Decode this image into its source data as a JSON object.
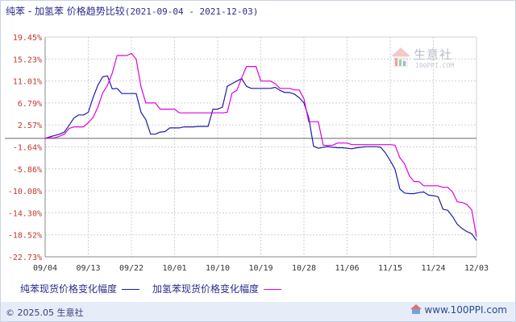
{
  "header": {
    "title": "纯苯 - 加氢苯 价格趋势比较",
    "range": "(2021-09-04 - 2021-12-03)"
  },
  "watermark": {
    "brand": "生意社",
    "url": "100PPI.COM"
  },
  "footer": {
    "copyright": "© 2025.05 生意社",
    "site": "www.100PPI.com"
  },
  "colors": {
    "series1": "#1c1ca8",
    "series2": "#e000e0",
    "axis": "#888888",
    "grid": "#d0d0d0",
    "label": "#c0392b",
    "xlabel": "#333333",
    "zero": "#666666"
  },
  "chart_data": {
    "type": "line",
    "title": "纯苯 - 加氢苯 价格趋势比较",
    "xlabel": "",
    "ylabel": "",
    "y_ticks": [
      "19.45%",
      "15.23%",
      "11.01%",
      "6.79%",
      "2.57%",
      "-1.64%",
      "-5.86%",
      "-10.08%",
      "-14.30%",
      "-18.52%",
      "-22.73%"
    ],
    "ylim": [
      -22.73,
      19.45
    ],
    "x_ticks": [
      "09/04",
      "09/13",
      "09/22",
      "10/01",
      "10/10",
      "10/19",
      "10/28",
      "11/06",
      "11/15",
      "11/24",
      "12/03"
    ],
    "x_range_days": [
      0,
      90
    ],
    "grid": true,
    "legend_position": "bottom",
    "series": [
      {
        "name": "纯苯现货价格变化幅度",
        "points": [
          [
            0,
            0
          ],
          [
            1,
            0.3
          ],
          [
            3,
            0.8
          ],
          [
            4,
            1.2
          ],
          [
            5,
            2.5
          ],
          [
            6,
            3.9
          ],
          [
            7,
            4.5
          ],
          [
            8,
            4.5
          ],
          [
            9,
            5.0
          ],
          [
            10,
            7.8
          ],
          [
            11,
            10.2
          ],
          [
            12,
            11.8
          ],
          [
            13,
            12.0
          ],
          [
            14,
            9.5
          ],
          [
            15,
            9.6
          ],
          [
            16,
            8.6
          ],
          [
            17,
            8.6
          ],
          [
            18,
            8.6
          ],
          [
            19,
            8.6
          ],
          [
            20,
            5.0
          ],
          [
            21,
            3.6
          ],
          [
            22,
            0.8
          ],
          [
            23,
            0.8
          ],
          [
            24,
            1.2
          ],
          [
            25,
            1.3
          ],
          [
            26,
            2.0
          ],
          [
            27,
            2.0
          ],
          [
            28,
            2.0
          ],
          [
            29,
            2.2
          ],
          [
            30,
            2.2
          ],
          [
            31,
            2.2
          ],
          [
            32,
            2.3
          ],
          [
            33,
            2.3
          ],
          [
            34,
            2.3
          ],
          [
            35,
            5.6
          ],
          [
            36,
            5.6
          ],
          [
            37,
            6.0
          ],
          [
            38,
            10.0
          ],
          [
            39,
            10.5
          ],
          [
            40,
            11.0
          ],
          [
            41,
            11.5
          ],
          [
            42,
            10.0
          ],
          [
            43,
            9.6
          ],
          [
            44,
            9.6
          ],
          [
            45,
            9.6
          ],
          [
            46,
            9.6
          ],
          [
            47,
            9.6
          ],
          [
            48,
            9.8
          ],
          [
            49,
            9.2
          ],
          [
            50,
            8.8
          ],
          [
            51,
            8.8
          ],
          [
            52,
            8.5
          ],
          [
            53,
            7.8
          ],
          [
            54,
            6.8
          ],
          [
            55,
            4.0
          ],
          [
            56,
            -1.5
          ],
          [
            57,
            -1.9
          ],
          [
            58,
            -1.7
          ],
          [
            59,
            -1.6
          ],
          [
            60,
            -1.7
          ],
          [
            61,
            -1.8
          ],
          [
            62,
            -1.8
          ],
          [
            63,
            -1.9
          ],
          [
            64,
            -2.0
          ],
          [
            65,
            -1.8
          ],
          [
            66,
            -1.7
          ],
          [
            67,
            -1.6
          ],
          [
            68,
            -1.6
          ],
          [
            69,
            -1.6
          ],
          [
            70,
            -1.7
          ],
          [
            71,
            -2.8
          ],
          [
            72,
            -4.3
          ],
          [
            73,
            -5.9
          ],
          [
            74,
            -9.7
          ],
          [
            75,
            -10.5
          ],
          [
            76,
            -10.6
          ],
          [
            77,
            -10.6
          ],
          [
            78,
            -10.4
          ],
          [
            79,
            -10.3
          ],
          [
            80,
            -10.9
          ],
          [
            81,
            -11.0
          ],
          [
            82,
            -11.2
          ],
          [
            83,
            -13.6
          ],
          [
            84,
            -13.8
          ],
          [
            85,
            -15.0
          ],
          [
            86,
            -16.5
          ],
          [
            87,
            -17.3
          ],
          [
            88,
            -17.9
          ],
          [
            89,
            -18.3
          ],
          [
            90,
            -19.6
          ]
        ]
      },
      {
        "name": "加氢苯现货价格变化幅度",
        "points": [
          [
            0,
            0
          ],
          [
            1,
            0.1
          ],
          [
            2,
            0.1
          ],
          [
            3,
            0.4
          ],
          [
            4,
            0.8
          ],
          [
            5,
            1.9
          ],
          [
            6,
            2.2
          ],
          [
            7,
            2.2
          ],
          [
            8,
            2.2
          ],
          [
            9,
            3.0
          ],
          [
            10,
            4.0
          ],
          [
            11,
            6.0
          ],
          [
            12,
            8.7
          ],
          [
            13,
            10.2
          ],
          [
            14,
            12.5
          ],
          [
            15,
            15.9
          ],
          [
            16,
            15.9
          ],
          [
            17,
            15.9
          ],
          [
            18,
            16.3
          ],
          [
            19,
            15.2
          ],
          [
            20,
            9.9
          ],
          [
            21,
            6.8
          ],
          [
            22,
            6.8
          ],
          [
            23,
            6.8
          ],
          [
            24,
            5.6
          ],
          [
            25,
            5.6
          ],
          [
            26,
            5.6
          ],
          [
            27,
            5.6
          ],
          [
            28,
            4.9
          ],
          [
            29,
            4.9
          ],
          [
            30,
            4.9
          ],
          [
            31,
            4.9
          ],
          [
            32,
            4.9
          ],
          [
            33,
            4.9
          ],
          [
            34,
            4.9
          ],
          [
            35,
            4.9
          ],
          [
            36,
            4.9
          ],
          [
            37,
            4.9
          ],
          [
            38,
            5.0
          ],
          [
            39,
            8.7
          ],
          [
            40,
            9.2
          ],
          [
            41,
            11.6
          ],
          [
            42,
            13.8
          ],
          [
            43,
            13.8
          ],
          [
            44,
            13.8
          ],
          [
            45,
            11.0
          ],
          [
            46,
            11.0
          ],
          [
            47,
            11.0
          ],
          [
            48,
            10.5
          ],
          [
            49,
            9.6
          ],
          [
            50,
            9.6
          ],
          [
            51,
            9.6
          ],
          [
            52,
            9.3
          ],
          [
            53,
            9.3
          ],
          [
            54,
            7.6
          ],
          [
            55,
            3.2
          ],
          [
            56,
            3.2
          ],
          [
            57,
            3.2
          ],
          [
            58,
            -1.3
          ],
          [
            59,
            -1.4
          ],
          [
            60,
            -1.3
          ],
          [
            61,
            -0.9
          ],
          [
            62,
            -0.9
          ],
          [
            63,
            -0.9
          ],
          [
            64,
            -1.2
          ],
          [
            65,
            -1.2
          ],
          [
            66,
            -1.2
          ],
          [
            67,
            -1.2
          ],
          [
            68,
            -1.2
          ],
          [
            69,
            -1.2
          ],
          [
            70,
            -1.2
          ],
          [
            71,
            -1.2
          ],
          [
            72,
            -1.2
          ],
          [
            73,
            -1.3
          ],
          [
            74,
            -3.7
          ],
          [
            75,
            -4.9
          ],
          [
            76,
            -7.2
          ],
          [
            77,
            -8.3
          ],
          [
            78,
            -8.3
          ],
          [
            79,
            -9.1
          ],
          [
            80,
            -9.1
          ],
          [
            81,
            -9.1
          ],
          [
            82,
            -9.1
          ],
          [
            83,
            -9.4
          ],
          [
            84,
            -9.4
          ],
          [
            85,
            -10.3
          ],
          [
            86,
            -12.2
          ],
          [
            87,
            -12.3
          ],
          [
            88,
            -12.7
          ],
          [
            89,
            -13.7
          ],
          [
            90,
            -18.9
          ]
        ]
      }
    ]
  }
}
